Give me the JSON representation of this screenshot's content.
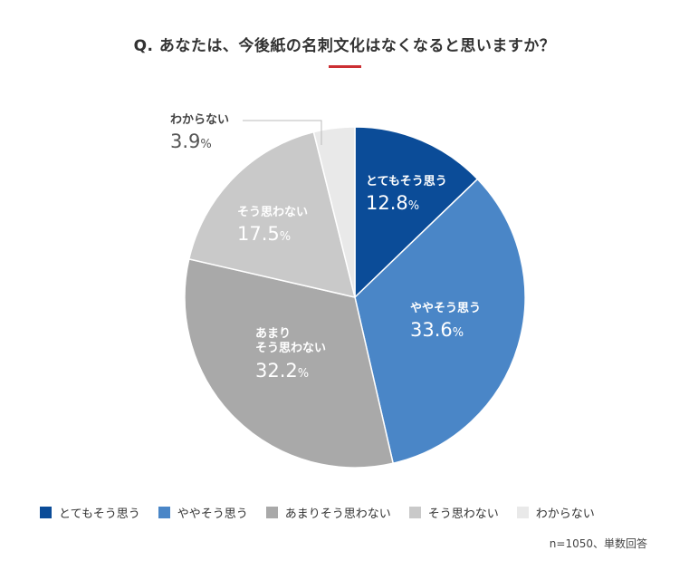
{
  "title": "Q. あなたは、今後紙の名刺文化はなくなると思いますか？",
  "chart_data": {
    "type": "pie",
    "slices": [
      {
        "label": "とてもそう思う",
        "value": 12.8,
        "color": "#0b4c98"
      },
      {
        "label": "ややそう思う",
        "value": 33.6,
        "color": "#4a86c7"
      },
      {
        "label": "あまりそう思わない",
        "value": 32.2,
        "color": "#a9a9a9"
      },
      {
        "label": "そう思わない",
        "value": 17.5,
        "color": "#c9c9c9"
      },
      {
        "label": "わからない",
        "value": 3.9,
        "color": "#e9e9e9"
      }
    ],
    "label_lines": {
      "とてもそう思う": [
        "とてもそう思う"
      ],
      "ややそう思う": [
        "ややそう思う"
      ],
      "あまりそう思わない": [
        "あまり",
        "そう思わない"
      ],
      "そう思わない": [
        "そう思わない"
      ],
      "わからない": [
        "わからない"
      ]
    },
    "value_strings": [
      "12.8",
      "33.6",
      "32.2",
      "17.5",
      "3.9"
    ],
    "unit": "%",
    "legend_position": "bottom"
  },
  "note": "n=1050、単数回答"
}
